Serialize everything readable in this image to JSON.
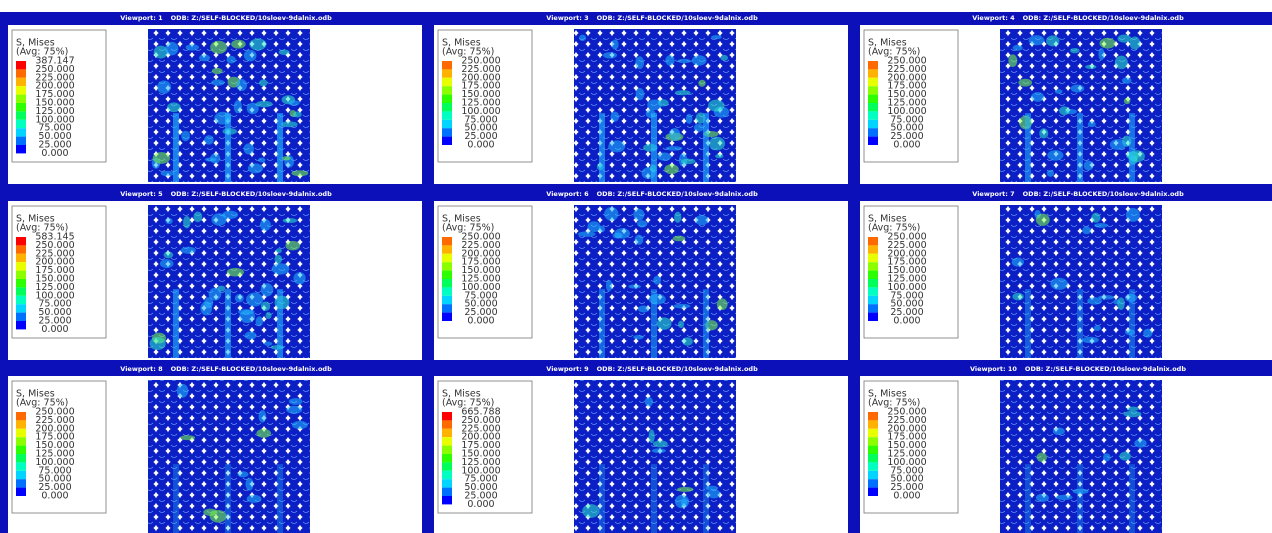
{
  "viewports": [
    {
      "title": "Viewport: 1",
      "odb": "ODB: Z:/SELF-BLOCKED/10sloev-9dalnix.odb",
      "legend": {
        "variable": "S, Mises",
        "averaging": "(Avg: 75%)",
        "labels": [
          "387.147",
          "250.000",
          "225.000",
          "200.000",
          "175.000",
          "150.000",
          "125.000",
          "100.000",
          "75.000",
          "50.000",
          "25.000",
          "0.000"
        ]
      }
    },
    {
      "title": "Viewport: 3",
      "odb": "ODB: Z:/SELF-BLOCKED/10sloev-9dalnix.odb",
      "legend": {
        "variable": "S, Mises",
        "averaging": "(Avg: 75%)",
        "labels": [
          "250.000",
          "225.000",
          "200.000",
          "175.000",
          "150.000",
          "125.000",
          "100.000",
          "75.000",
          "50.000",
          "25.000",
          "0.000"
        ]
      }
    },
    {
      "title": "Viewport: 4",
      "odb": "ODB: Z:/SELF-BLOCKED/10sloev-9dalnix.odb",
      "legend": {
        "variable": "S, Mises",
        "averaging": "(Avg: 75%)",
        "labels": [
          "250.000",
          "225.000",
          "200.000",
          "175.000",
          "150.000",
          "125.000",
          "100.000",
          "75.000",
          "50.000",
          "25.000",
          "0.000"
        ]
      }
    },
    {
      "title": "Viewport: 5",
      "odb": "ODB: Z:/SELF-BLOCKED/10sloev-9dalnix.odb",
      "legend": {
        "variable": "S, Mises",
        "averaging": "(Avg: 75%)",
        "labels": [
          "583.145",
          "250.000",
          "225.000",
          "200.000",
          "175.000",
          "150.000",
          "125.000",
          "100.000",
          "75.000",
          "50.000",
          "25.000",
          "0.000"
        ]
      }
    },
    {
      "title": "Viewport: 6",
      "odb": "ODB: Z:/SELF-BLOCKED/10sloev-9dalnix.odb",
      "legend": {
        "variable": "S, Mises",
        "averaging": "(Avg: 75%)",
        "labels": [
          "250.000",
          "225.000",
          "200.000",
          "175.000",
          "150.000",
          "125.000",
          "100.000",
          "75.000",
          "50.000",
          "25.000",
          "0.000"
        ]
      }
    },
    {
      "title": "Viewport: 7",
      "odb": "ODB: Z:/SELF-BLOCKED/10sloev-9dalnix.odb",
      "legend": {
        "variable": "S, Mises",
        "averaging": "(Avg: 75%)",
        "labels": [
          "250.000",
          "225.000",
          "200.000",
          "175.000",
          "150.000",
          "125.000",
          "100.000",
          "75.000",
          "50.000",
          "25.000",
          "0.000"
        ]
      }
    },
    {
      "title": "Viewport: 8",
      "odb": "ODB: Z:/SELF-BLOCKED/10sloev-9dalnix.odb",
      "legend": {
        "variable": "S, Mises",
        "averaging": "(Avg: 75%)",
        "labels": [
          "250.000",
          "225.000",
          "200.000",
          "175.000",
          "150.000",
          "125.000",
          "100.000",
          "75.000",
          "50.000",
          "25.000",
          "0.000"
        ]
      }
    },
    {
      "title": "Viewport: 9",
      "odb": "ODB: Z:/SELF-BLOCKED/10sloev-9dalnix.odb",
      "legend": {
        "variable": "S, Mises",
        "averaging": "(Avg: 75%)",
        "labels": [
          "665.788",
          "250.000",
          "225.000",
          "200.000",
          "175.000",
          "150.000",
          "125.000",
          "100.000",
          "75.000",
          "50.000",
          "25.000",
          "0.000"
        ]
      }
    },
    {
      "title": "Viewport: 10",
      "odb": "ODB: Z:/SELF-BLOCKED/10sloev-9dalnix.odb",
      "legend": {
        "variable": "S, Mises",
        "averaging": "(Avg: 75%)",
        "labels": [
          "250.000",
          "225.000",
          "200.000",
          "175.000",
          "150.000",
          "125.000",
          "100.000",
          "75.000",
          "50.000",
          "25.000",
          "0.000"
        ]
      }
    }
  ]
}
